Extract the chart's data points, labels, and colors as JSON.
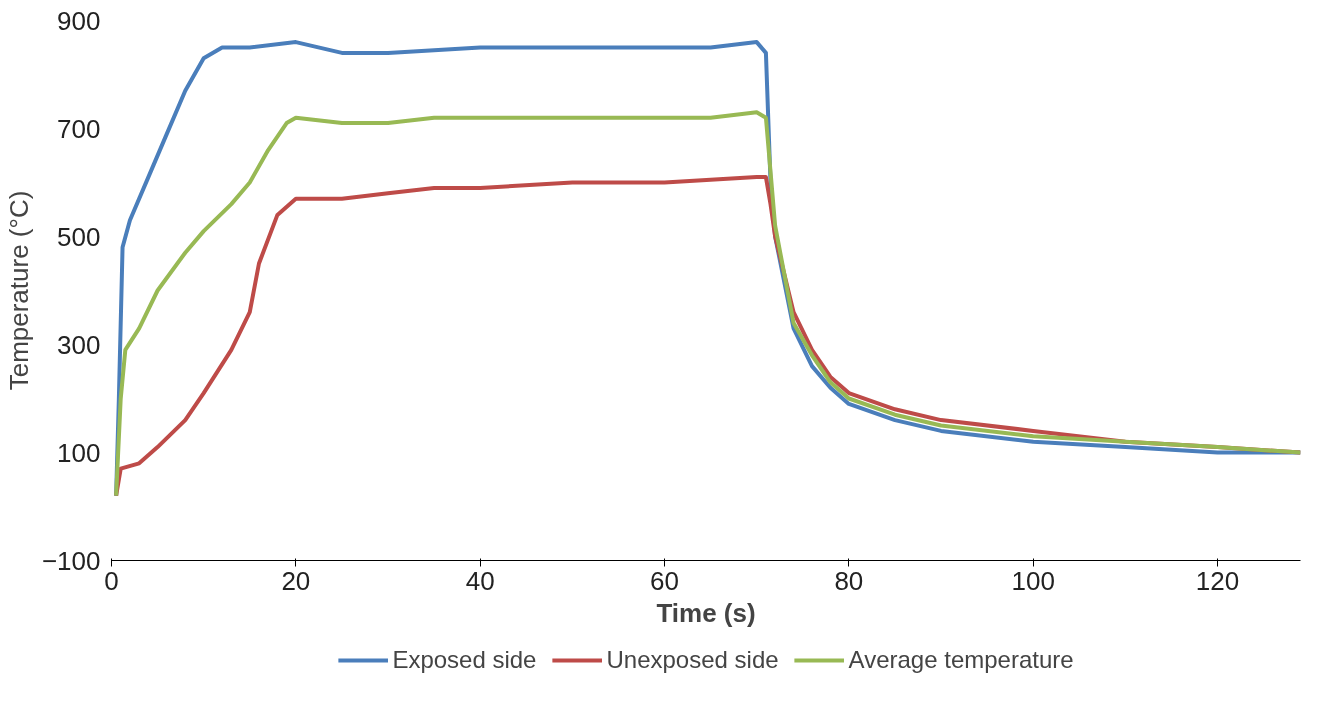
{
  "chart_data": {
    "type": "line",
    "xlabel": "Time (s)",
    "ylabel": "Temperature (°C)",
    "xlim": [
      0,
      129
    ],
    "ylim": [
      -100,
      900
    ],
    "xticks": [
      0,
      20,
      40,
      60,
      80,
      100,
      120
    ],
    "yticks": [
      -100,
      100,
      300,
      500,
      700,
      900
    ],
    "grid": false,
    "legend": "bottom",
    "marker": "none",
    "line_style": "solid",
    "series": [
      {
        "name": "Exposed side",
        "color": "#4a7ebb",
        "x": [
          0.5,
          0.8,
          1.2,
          2,
          4,
          6,
          8,
          10,
          12,
          15,
          20,
          25,
          30,
          40,
          50,
          60,
          65,
          70,
          71,
          71.5,
          72,
          74,
          76,
          78,
          80,
          85,
          90,
          100,
          110,
          120,
          129
        ],
        "values": [
          20,
          200,
          480,
          530,
          610,
          690,
          770,
          830,
          850,
          850,
          860,
          840,
          840,
          850,
          850,
          850,
          850,
          860,
          840,
          600,
          500,
          330,
          260,
          220,
          190,
          160,
          140,
          120,
          110,
          100,
          100
        ]
      },
      {
        "name": "Unexposed side",
        "color": "#be4b48",
        "x": [
          0.5,
          1,
          3,
          5,
          8,
          10,
          13,
          15,
          16,
          18,
          20,
          25,
          30,
          35,
          40,
          50,
          60,
          70,
          71,
          71.5,
          72,
          74,
          76,
          78,
          80,
          85,
          90,
          100,
          110,
          120,
          129
        ],
        "values": [
          20,
          70,
          80,
          110,
          160,
          210,
          290,
          360,
          450,
          540,
          570,
          570,
          580,
          590,
          590,
          600,
          600,
          610,
          610,
          560,
          500,
          360,
          290,
          240,
          210,
          180,
          160,
          140,
          120,
          110,
          100
        ]
      },
      {
        "name": "Average temperature",
        "color": "#98b954",
        "x": [
          0.5,
          1,
          1.5,
          3,
          5,
          8,
          10,
          13,
          15,
          17,
          19,
          20,
          25,
          30,
          35,
          40,
          50,
          60,
          65,
          70,
          71,
          71.5,
          72,
          74,
          76,
          78,
          80,
          85,
          90,
          100,
          110,
          120,
          129
        ],
        "values": [
          20,
          200,
          290,
          330,
          400,
          470,
          510,
          560,
          600,
          660,
          710,
          720,
          710,
          710,
          720,
          720,
          720,
          720,
          720,
          730,
          720,
          620,
          520,
          340,
          280,
          230,
          200,
          170,
          150,
          130,
          120,
          110,
          100
        ]
      }
    ]
  }
}
